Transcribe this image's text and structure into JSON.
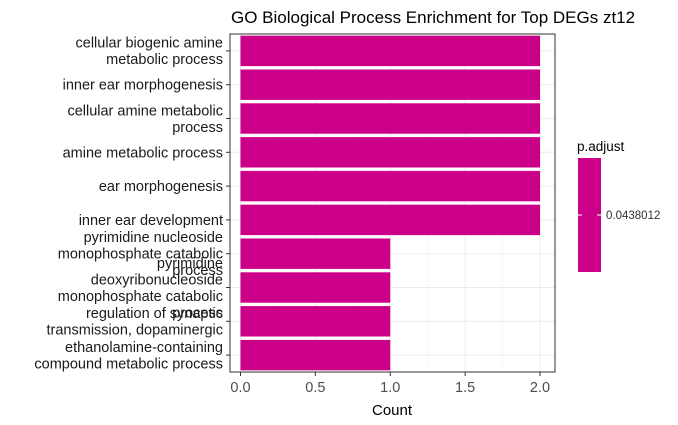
{
  "chart_data": {
    "type": "bar",
    "orientation": "horizontal",
    "title": "GO Biological Process Enrichment for Top DEGs zt12",
    "xlabel": "Count",
    "ylabel": "",
    "xlim": [
      -0.07,
      2.1
    ],
    "xticks": [
      0.0,
      0.5,
      1.0,
      1.5,
      2.0
    ],
    "xtick_labels": [
      "0.0",
      "0.5",
      "1.0",
      "1.5",
      "2.0"
    ],
    "grid": true,
    "bar_color": "#CC0088",
    "categories": [
      [
        "cellular biogenic amine",
        "metabolic process"
      ],
      [
        "inner ear morphogenesis"
      ],
      [
        "cellular amine metabolic",
        "process"
      ],
      [
        "amine metabolic process"
      ],
      [
        "ear morphogenesis"
      ],
      [
        "inner ear development"
      ],
      [
        "pyrimidine nucleoside",
        "monophosphate catabolic",
        "process"
      ],
      [
        "pyrimidine",
        "deoxyribonucleoside",
        "monophosphate catabolic",
        "process"
      ],
      [
        "regulation of synaptic",
        "transmission, dopaminergic"
      ],
      [
        "ethanolamine-containing",
        "compound metabolic process"
      ]
    ],
    "values": [
      2,
      2,
      2,
      2,
      2,
      2,
      1,
      1,
      1,
      1
    ],
    "legend": {
      "title": "p.adjust",
      "type": "colorbar",
      "color": "#CC0088",
      "tick_label": "0.0438012",
      "position": "right"
    }
  }
}
